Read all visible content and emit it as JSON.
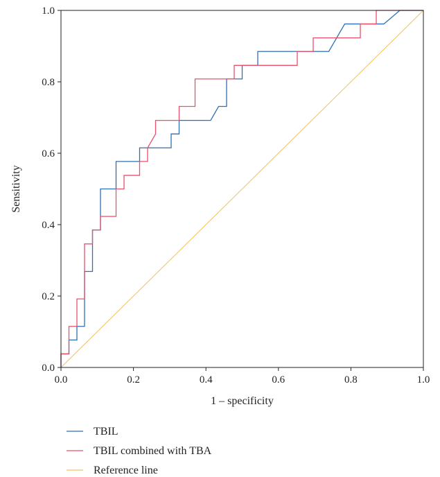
{
  "chart_data": {
    "type": "line",
    "title": "",
    "xlabel": "1 – specificity",
    "ylabel": "Sensitivity",
    "xlim": [
      0,
      1
    ],
    "ylim": [
      0,
      1
    ],
    "x_ticks": [
      "0.0",
      "0.2",
      "0.4",
      "0.6",
      "0.8",
      "1.0"
    ],
    "y_ticks": [
      "0.0",
      "0.2",
      "0.4",
      "0.6",
      "0.8",
      "1.0"
    ],
    "grid": false,
    "legend_position": "bottom-left",
    "series": [
      {
        "name": "TBIL",
        "color": "#2f6eb5",
        "points": [
          [
            0,
            0
          ],
          [
            0,
            0.038
          ],
          [
            0.022,
            0.038
          ],
          [
            0.022,
            0.077
          ],
          [
            0.044,
            0.077
          ],
          [
            0.044,
            0.115
          ],
          [
            0.065,
            0.115
          ],
          [
            0.065,
            0.269
          ],
          [
            0.087,
            0.269
          ],
          [
            0.087,
            0.385
          ],
          [
            0.109,
            0.385
          ],
          [
            0.109,
            0.5
          ],
          [
            0.152,
            0.5
          ],
          [
            0.152,
            0.577
          ],
          [
            0.217,
            0.577
          ],
          [
            0.217,
            0.615
          ],
          [
            0.304,
            0.615
          ],
          [
            0.304,
            0.654
          ],
          [
            0.326,
            0.654
          ],
          [
            0.326,
            0.692
          ],
          [
            0.413,
            0.692
          ],
          [
            0.435,
            0.731
          ],
          [
            0.457,
            0.731
          ],
          [
            0.457,
            0.808
          ],
          [
            0.5,
            0.808
          ],
          [
            0.5,
            0.846
          ],
          [
            0.543,
            0.846
          ],
          [
            0.543,
            0.885
          ],
          [
            0.739,
            0.885
          ],
          [
            0.783,
            0.962
          ],
          [
            0.891,
            0.962
          ],
          [
            0.935,
            1.0
          ],
          [
            1.0,
            1.0
          ]
        ]
      },
      {
        "name": "TBIL combined with TBA",
        "color": "#e8506b",
        "points": [
          [
            0,
            0
          ],
          [
            0,
            0.038
          ],
          [
            0.022,
            0.038
          ],
          [
            0.022,
            0.115
          ],
          [
            0.044,
            0.115
          ],
          [
            0.044,
            0.192
          ],
          [
            0.065,
            0.192
          ],
          [
            0.065,
            0.346
          ],
          [
            0.087,
            0.346
          ],
          [
            0.087,
            0.385
          ],
          [
            0.109,
            0.385
          ],
          [
            0.109,
            0.423
          ],
          [
            0.152,
            0.423
          ],
          [
            0.152,
            0.5
          ],
          [
            0.174,
            0.5
          ],
          [
            0.174,
            0.538
          ],
          [
            0.217,
            0.538
          ],
          [
            0.217,
            0.577
          ],
          [
            0.239,
            0.577
          ],
          [
            0.239,
            0.615
          ],
          [
            0.261,
            0.654
          ],
          [
            0.261,
            0.692
          ],
          [
            0.326,
            0.692
          ],
          [
            0.326,
            0.731
          ],
          [
            0.37,
            0.731
          ],
          [
            0.37,
            0.808
          ],
          [
            0.478,
            0.808
          ],
          [
            0.478,
            0.846
          ],
          [
            0.652,
            0.846
          ],
          [
            0.652,
            0.885
          ],
          [
            0.696,
            0.885
          ],
          [
            0.696,
            0.923
          ],
          [
            0.826,
            0.923
          ],
          [
            0.826,
            0.962
          ],
          [
            0.87,
            0.962
          ],
          [
            0.87,
            1.0
          ],
          [
            1.0,
            1.0
          ]
        ]
      },
      {
        "name": "Reference line",
        "color": "#f2c05e",
        "points": [
          [
            0,
            0
          ],
          [
            1,
            1
          ]
        ]
      }
    ]
  }
}
